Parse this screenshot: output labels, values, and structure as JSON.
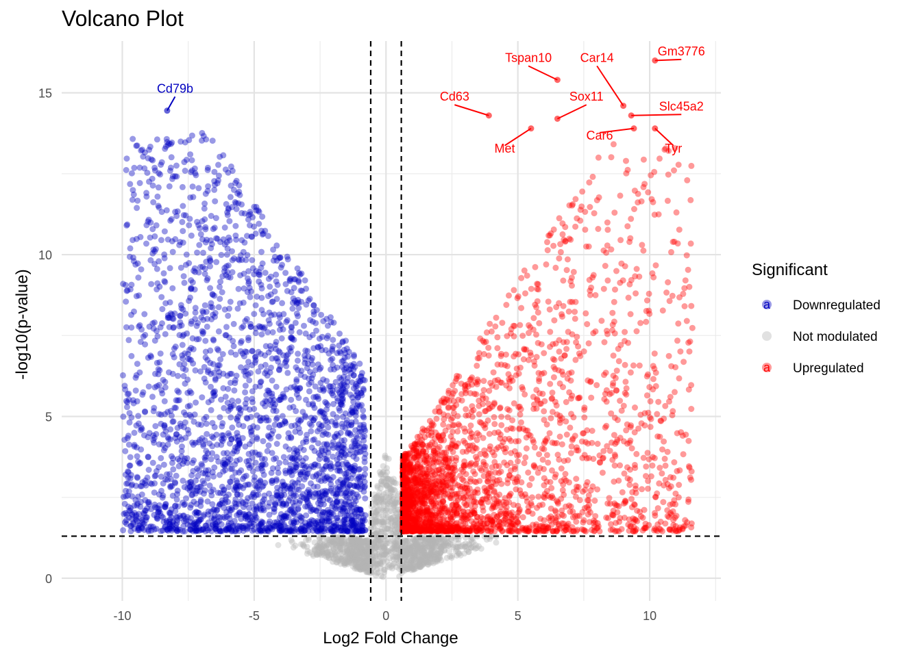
{
  "chart_data": {
    "type": "scatter",
    "title": "Volcano Plot",
    "xlabel": "Log2 Fold Change",
    "ylabel": "-log10(p-value)",
    "xlim": [
      -12.3,
      12.7
    ],
    "ylim": [
      -0.7,
      16.6
    ],
    "x_ticks": [
      "-10",
      "-5",
      "0",
      "5",
      "10"
    ],
    "x_tick_values": [
      -10,
      -5,
      0,
      5,
      10
    ],
    "y_ticks": [
      "0",
      "5",
      "10",
      "15"
    ],
    "y_tick_values": [
      0,
      5,
      10,
      15
    ],
    "grid": true,
    "thresholds": {
      "log2fc": [
        -0.58,
        0.58
      ],
      "neg_log10_p": 1.3
    },
    "legend": {
      "title": "Significant",
      "position": "right",
      "entries": [
        {
          "label": "Downregulated",
          "color": "#0000c0"
        },
        {
          "label": "Not modulated",
          "color": "#b3b3b3"
        },
        {
          "label": "Upregulated",
          "color": "#ff0000"
        }
      ]
    },
    "colors": {
      "down": "#0000c0",
      "ns": "#b3b3b3",
      "up": "#ff0000"
    },
    "labeled_genes": [
      {
        "gene": "Cd79b",
        "x": -8.3,
        "y": 14.45,
        "group": "Downregulated",
        "label_x": -8.0,
        "label_y": 15.05
      },
      {
        "gene": "Tspan10",
        "x": 6.5,
        "y": 15.4,
        "group": "Upregulated",
        "label_x": 5.4,
        "label_y": 16.0
      },
      {
        "gene": "Car14",
        "x": 9.0,
        "y": 14.6,
        "group": "Upregulated",
        "label_x": 8.0,
        "label_y": 16.0
      },
      {
        "gene": "Gm3776",
        "x": 10.2,
        "y": 16.0,
        "group": "Upregulated",
        "label_x": 11.2,
        "label_y": 16.2
      },
      {
        "gene": "Cd63",
        "x": 3.9,
        "y": 14.3,
        "group": "Upregulated",
        "label_x": 2.6,
        "label_y": 14.8
      },
      {
        "gene": "Sox11",
        "x": 6.5,
        "y": 14.2,
        "group": "Upregulated",
        "label_x": 7.6,
        "label_y": 14.8
      },
      {
        "gene": "Slc45a2",
        "x": 9.3,
        "y": 14.3,
        "group": "Upregulated",
        "label_x": 11.2,
        "label_y": 14.5
      },
      {
        "gene": "Car6",
        "x": 9.4,
        "y": 13.9,
        "group": "Upregulated",
        "label_x": 8.1,
        "label_y": 13.6
      },
      {
        "gene": "Met",
        "x": 5.5,
        "y": 13.9,
        "group": "Upregulated",
        "label_x": 4.5,
        "label_y": 13.2
      },
      {
        "gene": "Tyr",
        "x": 10.2,
        "y": 13.9,
        "group": "Upregulated",
        "label_x": 10.9,
        "label_y": 13.2
      }
    ]
  }
}
